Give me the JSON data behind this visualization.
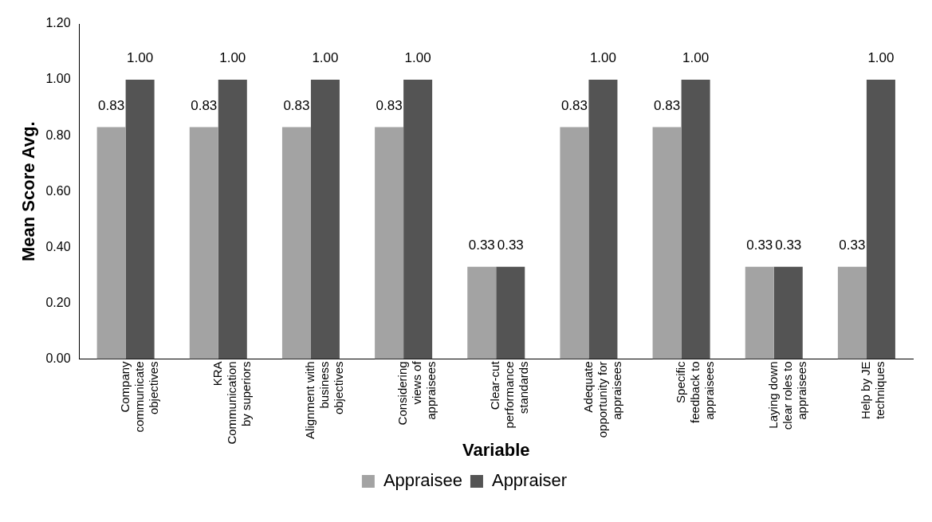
{
  "chart_data": {
    "type": "bar",
    "xlabel": "Variable",
    "ylabel": "Mean Score Avg.",
    "categories": [
      "Company communicate objectives",
      "KRA Communication by superiors",
      "Alignment with business objectives",
      "Considering views of appraisees",
      "Clear-cut performance standards",
      "Adequate opportunity for appraisees",
      "Specific feedback to appraisees",
      "Laying down clear roles to appraisees",
      "Help by JE techniques"
    ],
    "series": [
      {
        "name": "Appraisee",
        "color": "#a3a3a3",
        "values": [
          0.83,
          0.83,
          0.83,
          0.83,
          0.33,
          0.83,
          0.83,
          0.33,
          0.33
        ],
        "value_labels": [
          "0.83",
          "0.83",
          "0.83",
          "0.83",
          "0.33",
          "0.83",
          "0.83",
          "0.33",
          "0.33"
        ]
      },
      {
        "name": "Appraiser",
        "color": "#545454",
        "values": [
          1.0,
          1.0,
          1.0,
          1.0,
          0.33,
          1.0,
          1.0,
          0.33,
          1.0
        ],
        "value_labels": [
          "1.00",
          "1.00",
          "1.00",
          "1.00",
          "0.33",
          "1.00",
          "1.00",
          "0.33",
          "1.00"
        ]
      }
    ],
    "ylim": [
      0,
      1.2
    ],
    "yticks": [
      {
        "value": 0,
        "label": "0.00"
      },
      {
        "value": 0.2,
        "label": "0.20"
      },
      {
        "value": 0.4,
        "label": "0.40"
      },
      {
        "value": 0.6,
        "label": "0.60"
      },
      {
        "value": 0.8,
        "label": "0.80"
      },
      {
        "value": 1.0,
        "label": "1.00"
      },
      {
        "value": 1.2,
        "label": "1.20"
      }
    ],
    "grid": false,
    "legend": "bottom"
  }
}
